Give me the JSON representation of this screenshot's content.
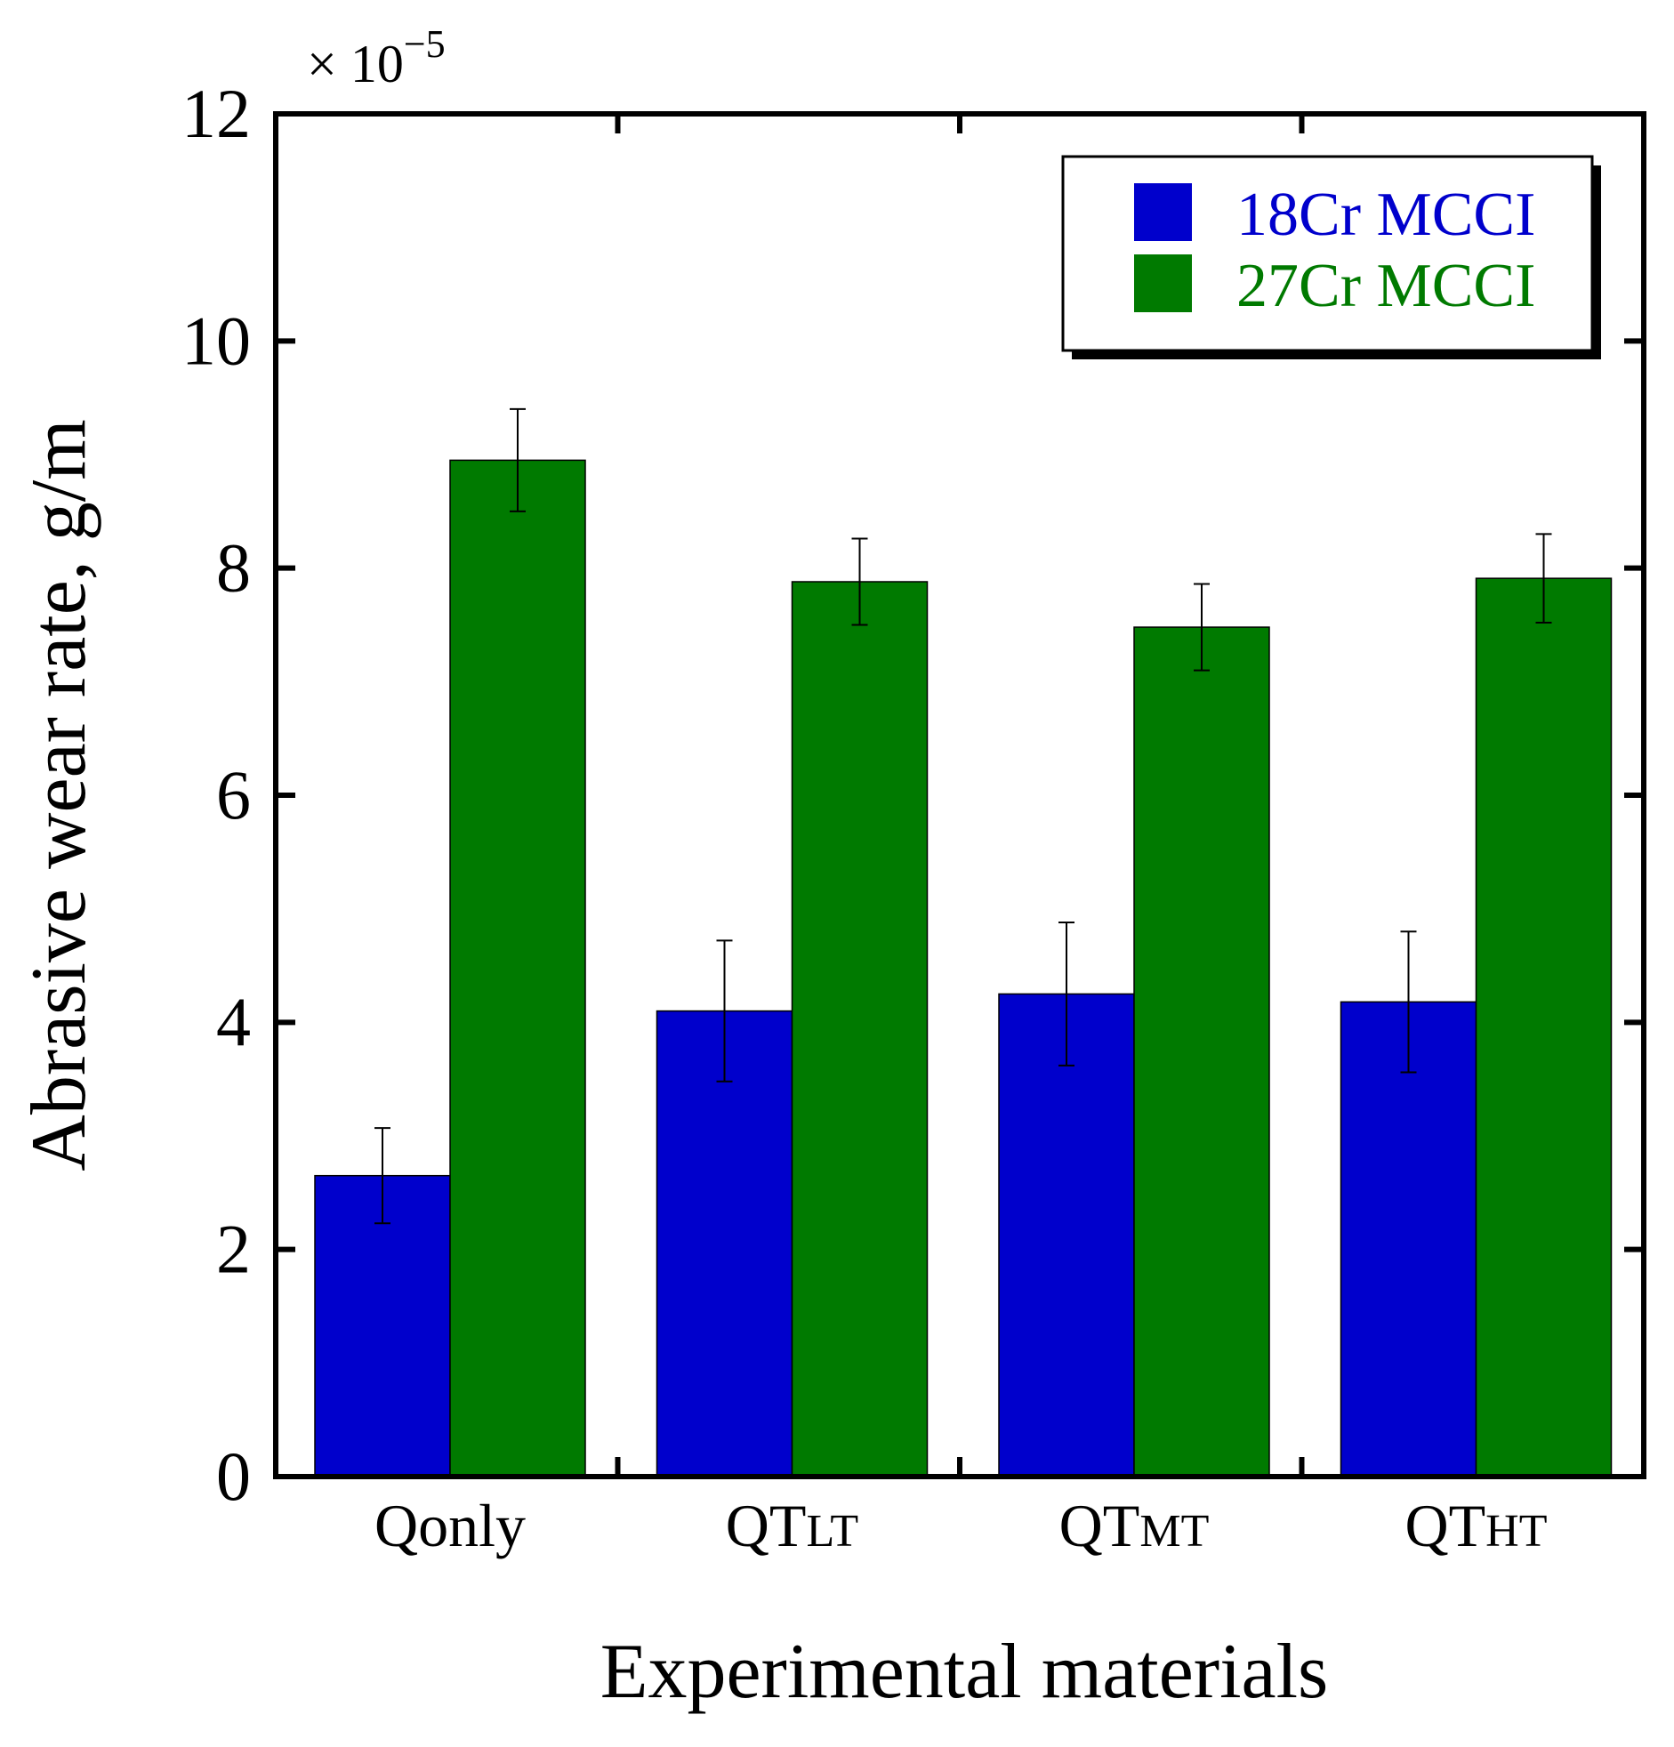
{
  "chart_data": {
    "type": "bar",
    "title": "",
    "xlabel": "Experimental materials",
    "ylabel": "Abrasive wear rate, g/m",
    "y_multiplier": {
      "prefix": "× 10",
      "exponent": "−5"
    },
    "ylim": [
      0,
      12
    ],
    "yticks": [
      "0",
      "2",
      "4",
      "6",
      "8",
      "10",
      "12"
    ],
    "categories": [
      {
        "main": "Qonly",
        "sub": ""
      },
      {
        "main": "QT",
        "sub": "LT"
      },
      {
        "main": "QT",
        "sub": "MT"
      },
      {
        "main": "QT",
        "sub": "HT"
      }
    ],
    "series": [
      {
        "name": "18Cr MCCI",
        "color": "#0000CC",
        "label_color": "#0000CC",
        "values": [
          2.65,
          4.1,
          4.25,
          4.18
        ],
        "errors": [
          0.42,
          0.62,
          0.63,
          0.62
        ]
      },
      {
        "name": "27Cr MCCI",
        "color": "#007A00",
        "label_color": "#007A00",
        "values": [
          8.95,
          7.88,
          7.48,
          7.91
        ],
        "errors": [
          0.45,
          0.38,
          0.38,
          0.39
        ]
      }
    ],
    "legend": {
      "position": "top-right"
    },
    "grid": false
  }
}
